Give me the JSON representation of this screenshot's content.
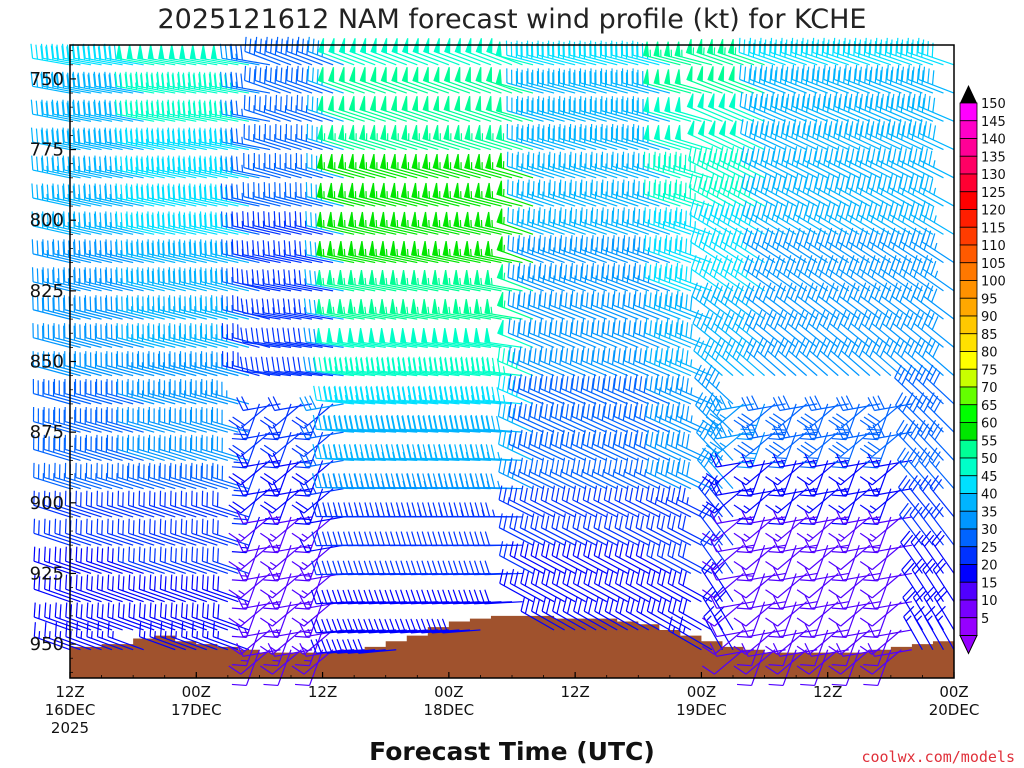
{
  "chart_data": {
    "type": "wind-profile",
    "title": "2025121612 NAM forecast wind profile (kt) for KCHE",
    "xlabel": "Forecast Time (UTC)",
    "credit": "coolwx.com/models",
    "y_ticks": [
      "750",
      "775",
      "800",
      "825",
      "850",
      "875",
      "900",
      "925",
      "950"
    ],
    "ylim": [
      962,
      738
    ],
    "x_ticks": [
      {
        "hour": 0,
        "line1": "12Z",
        "line2": "16DEC",
        "line3": "2025"
      },
      {
        "hour": 12,
        "line1": "00Z",
        "line2": "17DEC",
        "line3": ""
      },
      {
        "hour": 24,
        "line1": "12Z",
        "line2": "",
        "line3": ""
      },
      {
        "hour": 36,
        "line1": "00Z",
        "line2": "18DEC",
        "line3": ""
      },
      {
        "hour": 48,
        "line1": "12Z",
        "line2": "",
        "line3": ""
      },
      {
        "hour": 60,
        "line1": "00Z",
        "line2": "19DEC",
        "line3": ""
      },
      {
        "hour": 72,
        "line1": "12Z",
        "line2": "",
        "line3": ""
      },
      {
        "hour": 84,
        "line1": "00Z",
        "line2": "20DEC",
        "line3": ""
      }
    ],
    "xlim": [
      0,
      84
    ],
    "pressure_levels": [
      745,
      755,
      765,
      775,
      785,
      795,
      805,
      815,
      825,
      835,
      845,
      855,
      865,
      875,
      885,
      895,
      905,
      915,
      925,
      935,
      945,
      952
    ],
    "time_step_hours": 1,
    "colorbar": {
      "labels": [
        "150",
        "145",
        "140",
        "135",
        "130",
        "125",
        "120",
        "115",
        "110",
        "105",
        "100",
        "95",
        "90",
        "85",
        "80",
        "75",
        "70",
        "65",
        "60",
        "55",
        "50",
        "45",
        "40",
        "35",
        "30",
        "25",
        "20",
        "15",
        "10",
        "5"
      ],
      "colors": [
        "#ff00ff",
        "#ff00c8",
        "#ff0096",
        "#ff0064",
        "#ff0032",
        "#ff0000",
        "#ff1e00",
        "#ff3c00",
        "#ff5a00",
        "#ff7800",
        "#ff9100",
        "#ffa800",
        "#ffc800",
        "#ffe100",
        "#ffff00",
        "#c8ff00",
        "#64ff00",
        "#00ff00",
        "#00e600",
        "#00ff96",
        "#00ffc8",
        "#00e0ff",
        "#00b4ff",
        "#0096ff",
        "#0064ff",
        "#0032ff",
        "#0000ff",
        "#5000ff",
        "#7800ff",
        "#9600ff"
      ]
    },
    "terrain": {
      "color": "#a0522d",
      "hours": [
        0,
        3,
        6,
        8,
        10,
        12,
        14,
        16,
        18,
        20,
        22,
        24,
        26,
        28,
        30,
        32,
        34,
        36,
        38,
        40,
        42,
        44,
        46,
        48,
        50,
        52,
        54,
        56,
        58,
        60,
        62,
        64,
        66,
        68,
        70,
        72,
        74,
        76,
        78,
        80,
        82,
        84
      ],
      "pressure": [
        951,
        950,
        948,
        947,
        949,
        950,
        951,
        952,
        953,
        953,
        953,
        953,
        952,
        951,
        949,
        947,
        944,
        942,
        941,
        940,
        940,
        940,
        941,
        941,
        941,
        942,
        943,
        945,
        947,
        949,
        951,
        952,
        953,
        953,
        953,
        953,
        953,
        952,
        951,
        950,
        949,
        949
      ]
    }
  }
}
